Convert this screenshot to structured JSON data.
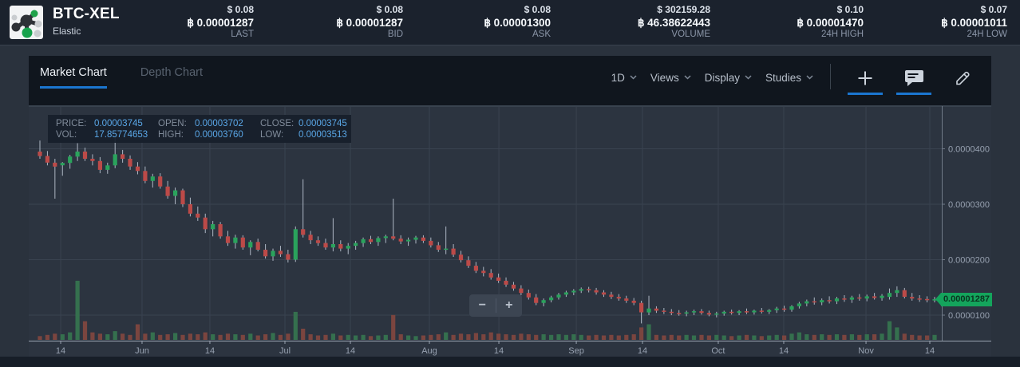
{
  "header": {
    "pair": "BTC-XEL",
    "name": "Elastic",
    "stats": [
      {
        "usd": "$ 0.08",
        "btc": "฿ 0.00001287",
        "label": "LAST"
      },
      {
        "usd": "$ 0.08",
        "btc": "฿ 0.00001287",
        "label": "BID"
      },
      {
        "usd": "$ 0.08",
        "btc": "฿ 0.00001300",
        "label": "ASK"
      },
      {
        "usd": "$ 302159.28",
        "btc": "฿ 46.38622443",
        "label": "VOLUME"
      },
      {
        "usd": "$ 0.10",
        "btc": "฿ 0.00001470",
        "label": "24H HIGH"
      },
      {
        "usd": "$ 0.07",
        "btc": "฿ 0.00001011",
        "label": "24H LOW"
      }
    ]
  },
  "toolbar": {
    "tabs": [
      {
        "label": "Market Chart",
        "active": true
      },
      {
        "label": "Depth Chart",
        "active": false
      }
    ],
    "controls": [
      {
        "label": "1D"
      },
      {
        "label": "Views"
      },
      {
        "label": "Display"
      },
      {
        "label": "Studies"
      }
    ]
  },
  "overlay": {
    "price_label": "PRICE:",
    "price": "0.00003745",
    "open_label": "OPEN:",
    "open": "0.00003702",
    "close_label": "CLOSE:",
    "close": "0.00003745",
    "vol_label": "VOL:",
    "vol": "17.85774653",
    "high_label": "HIGH:",
    "high": "0.00003760",
    "low_label": "LOW:",
    "low": "0.00003513"
  },
  "zoom_controls": {
    "zoom_out": "−",
    "zoom_in": "+"
  },
  "last_price_badge": "0.00001287",
  "colors": {
    "accent": "#1b76d0",
    "up": "#2aa35c",
    "down": "#bc4a48",
    "wick": "#aeb7c4",
    "vol_up": "#35704e",
    "vol_down": "#7b453f",
    "grid": "#3a4350",
    "axis_text": "#97a1b0",
    "badge": "#14a45c"
  },
  "chart_data": {
    "type": "candlestick",
    "note": "BTC-XEL daily candles mid-May to mid-Nov; prices stored in satoshi (1e-8 BTC); candle format [open,high,low,close,volume_rel]",
    "ylim_sats": [
      540,
      4770
    ],
    "grid": true,
    "last_price_sats": 1287,
    "y_ticks": [
      {
        "sats": 4000,
        "label": "0.0000400"
      },
      {
        "sats": 3000,
        "label": "0.0000300"
      },
      {
        "sats": 2000,
        "label": "0.0000200"
      },
      {
        "sats": 1000,
        "label": "0.0000100"
      }
    ],
    "x_ticks": [
      {
        "pos": 0.035,
        "label": "14"
      },
      {
        "pos": 0.1241,
        "label": "Jun"
      },
      {
        "pos": 0.1984,
        "label": "14"
      },
      {
        "pos": 0.2806,
        "label": "Jul"
      },
      {
        "pos": 0.3523,
        "label": "14"
      },
      {
        "pos": 0.4388,
        "label": "Aug"
      },
      {
        "pos": 0.5149,
        "label": "14"
      },
      {
        "pos": 0.5997,
        "label": "Sep"
      },
      {
        "pos": 0.6722,
        "label": "14"
      },
      {
        "pos": 0.7552,
        "label": "Oct"
      },
      {
        "pos": 0.8269,
        "label": "14"
      },
      {
        "pos": 0.917,
        "label": "Nov"
      },
      {
        "pos": 0.9869,
        "label": "14"
      }
    ],
    "candles": [
      [
        3950,
        4150,
        3820,
        3870,
        6
      ],
      [
        3870,
        3960,
        3700,
        3750,
        8
      ],
      [
        3750,
        3820,
        3100,
        3680,
        10
      ],
      [
        3702,
        3760,
        3513,
        3745,
        9
      ],
      [
        3745,
        3890,
        3640,
        3860,
        12
      ],
      [
        3860,
        4100,
        3780,
        3950,
        95
      ],
      [
        3950,
        4020,
        3780,
        3820,
        30
      ],
      [
        3820,
        3900,
        3700,
        3780,
        12
      ],
      [
        3780,
        3850,
        3560,
        3620,
        10
      ],
      [
        3620,
        3750,
        3550,
        3700,
        9
      ],
      [
        3700,
        4280,
        3650,
        3900,
        14
      ],
      [
        3900,
        3980,
        3750,
        3820,
        10
      ],
      [
        3820,
        3880,
        3620,
        3680,
        8
      ],
      [
        3680,
        3760,
        3540,
        3600,
        25
      ],
      [
        3600,
        3680,
        3380,
        3420,
        10
      ],
      [
        3420,
        3550,
        3300,
        3500,
        12
      ],
      [
        3500,
        3560,
        3280,
        3320,
        8
      ],
      [
        3320,
        3420,
        3100,
        3150,
        9
      ],
      [
        3150,
        3300,
        3000,
        3250,
        11
      ],
      [
        3250,
        3280,
        2950,
        3000,
        8
      ],
      [
        3000,
        3120,
        2780,
        2830,
        10
      ],
      [
        2830,
        2960,
        2700,
        2760,
        9
      ],
      [
        2760,
        2830,
        2480,
        2550,
        12
      ],
      [
        2550,
        2700,
        2420,
        2640,
        9
      ],
      [
        2640,
        2680,
        2380,
        2420,
        8
      ],
      [
        2420,
        2520,
        2250,
        2300,
        10
      ],
      [
        2300,
        2450,
        2200,
        2400,
        9
      ],
      [
        2400,
        2440,
        2180,
        2220,
        8
      ],
      [
        2220,
        2350,
        2080,
        2320,
        10
      ],
      [
        2320,
        2380,
        2150,
        2180,
        7
      ],
      [
        2180,
        2280,
        2020,
        2060,
        9
      ],
      [
        2060,
        2200,
        1980,
        2160,
        11
      ],
      [
        2160,
        2250,
        2050,
        2100,
        8
      ],
      [
        2100,
        2180,
        1950,
        2000,
        10
      ],
      [
        2000,
        2600,
        1960,
        2550,
        45
      ],
      [
        2550,
        3450,
        2400,
        2450,
        18
      ],
      [
        2450,
        2520,
        2280,
        2350,
        9
      ],
      [
        2350,
        2420,
        2250,
        2300,
        7
      ],
      [
        2300,
        2380,
        2180,
        2220,
        8
      ],
      [
        2220,
        2750,
        2150,
        2280,
        10
      ],
      [
        2280,
        2350,
        2150,
        2200,
        7
      ],
      [
        2200,
        2300,
        2100,
        2250,
        8
      ],
      [
        2250,
        2340,
        2180,
        2300,
        7
      ],
      [
        2300,
        2400,
        2230,
        2370,
        8
      ],
      [
        2370,
        2430,
        2280,
        2320,
        6
      ],
      [
        2320,
        2420,
        2250,
        2390,
        7
      ],
      [
        2390,
        2450,
        2300,
        2420,
        8
      ],
      [
        2420,
        3100,
        2350,
        2380,
        40
      ],
      [
        2380,
        2440,
        2280,
        2330,
        9
      ],
      [
        2330,
        2400,
        2250,
        2360,
        7
      ],
      [
        2360,
        2430,
        2290,
        2400,
        6
      ],
      [
        2400,
        2440,
        2300,
        2340,
        7
      ],
      [
        2340,
        2400,
        2220,
        2260,
        8
      ],
      [
        2260,
        2320,
        2140,
        2180,
        9
      ],
      [
        2180,
        2600,
        2100,
        2200,
        12
      ],
      [
        2200,
        2280,
        2050,
        2090,
        8
      ],
      [
        2090,
        2160,
        1950,
        1990,
        10
      ],
      [
        1990,
        2060,
        1850,
        1890,
        9
      ],
      [
        1890,
        1960,
        1760,
        1800,
        11
      ],
      [
        1800,
        1870,
        1700,
        1760,
        9
      ],
      [
        1760,
        1830,
        1640,
        1680,
        12
      ],
      [
        1680,
        1750,
        1580,
        1620,
        10
      ],
      [
        1620,
        1680,
        1510,
        1550,
        9
      ],
      [
        1550,
        1600,
        1440,
        1480,
        8
      ],
      [
        1480,
        1540,
        1360,
        1400,
        10
      ],
      [
        1400,
        1460,
        1280,
        1320,
        9
      ],
      [
        1320,
        1380,
        1180,
        1220,
        8
      ],
      [
        1220,
        1300,
        1160,
        1270,
        9
      ],
      [
        1270,
        1350,
        1230,
        1320,
        8
      ],
      [
        1320,
        1400,
        1280,
        1370,
        9
      ],
      [
        1370,
        1440,
        1330,
        1410,
        8
      ],
      [
        1410,
        1470,
        1360,
        1440,
        9
      ],
      [
        1440,
        1500,
        1400,
        1470,
        8
      ],
      [
        1470,
        1510,
        1410,
        1450,
        7
      ],
      [
        1450,
        1490,
        1370,
        1410,
        8
      ],
      [
        1410,
        1450,
        1330,
        1370,
        7
      ],
      [
        1370,
        1420,
        1290,
        1330,
        8
      ],
      [
        1330,
        1380,
        1260,
        1300,
        7
      ],
      [
        1300,
        1350,
        1220,
        1260,
        8
      ],
      [
        1260,
        1310,
        1180,
        1220,
        9
      ],
      [
        1220,
        1260,
        850,
        1050,
        20
      ],
      [
        1050,
        1350,
        1000,
        1120,
        25
      ],
      [
        1120,
        1160,
        1040,
        1080,
        8
      ],
      [
        1080,
        1130,
        1020,
        1060,
        7
      ],
      [
        1060,
        1110,
        1000,
        1040,
        8
      ],
      [
        1040,
        1090,
        990,
        1030,
        7
      ],
      [
        1030,
        1080,
        980,
        1050,
        8
      ],
      [
        1050,
        1100,
        1000,
        1070,
        7
      ],
      [
        1070,
        1110,
        1010,
        1040,
        8
      ],
      [
        1040,
        1080,
        980,
        1010,
        7
      ],
      [
        1010,
        1060,
        960,
        1030,
        8
      ],
      [
        1030,
        1080,
        990,
        1060,
        7
      ],
      [
        1060,
        1100,
        1010,
        1040,
        6
      ],
      [
        1040,
        1090,
        1000,
        1070,
        7
      ],
      [
        1070,
        1120,
        1020,
        1050,
        8
      ],
      [
        1050,
        1100,
        1010,
        1080,
        7
      ],
      [
        1080,
        1130,
        1030,
        1060,
        6
      ],
      [
        1060,
        1110,
        1020,
        1090,
        7
      ],
      [
        1090,
        1150,
        1040,
        1120,
        8
      ],
      [
        1120,
        1170,
        1060,
        1100,
        7
      ],
      [
        1100,
        1180,
        1060,
        1160,
        10
      ],
      [
        1160,
        1240,
        1120,
        1210,
        12
      ],
      [
        1210,
        1280,
        1160,
        1250,
        9
      ],
      [
        1250,
        1320,
        1190,
        1230,
        8
      ],
      [
        1230,
        1300,
        1180,
        1270,
        9
      ],
      [
        1270,
        1340,
        1210,
        1250,
        8
      ],
      [
        1250,
        1330,
        1200,
        1300,
        9
      ],
      [
        1300,
        1360,
        1240,
        1280,
        8
      ],
      [
        1280,
        1350,
        1220,
        1320,
        9
      ],
      [
        1320,
        1380,
        1260,
        1300,
        8
      ],
      [
        1300,
        1370,
        1250,
        1340,
        9
      ],
      [
        1340,
        1400,
        1280,
        1310,
        9
      ],
      [
        1310,
        1380,
        1260,
        1350,
        10
      ],
      [
        1330,
        1480,
        1280,
        1400,
        30
      ],
      [
        1400,
        1520,
        1330,
        1450,
        20
      ],
      [
        1450,
        1490,
        1300,
        1330,
        10
      ],
      [
        1330,
        1400,
        1260,
        1300,
        8
      ],
      [
        1300,
        1360,
        1240,
        1290,
        7
      ],
      [
        1290,
        1340,
        1230,
        1270,
        7
      ],
      [
        1270,
        1330,
        1230,
        1287,
        8
      ]
    ]
  }
}
